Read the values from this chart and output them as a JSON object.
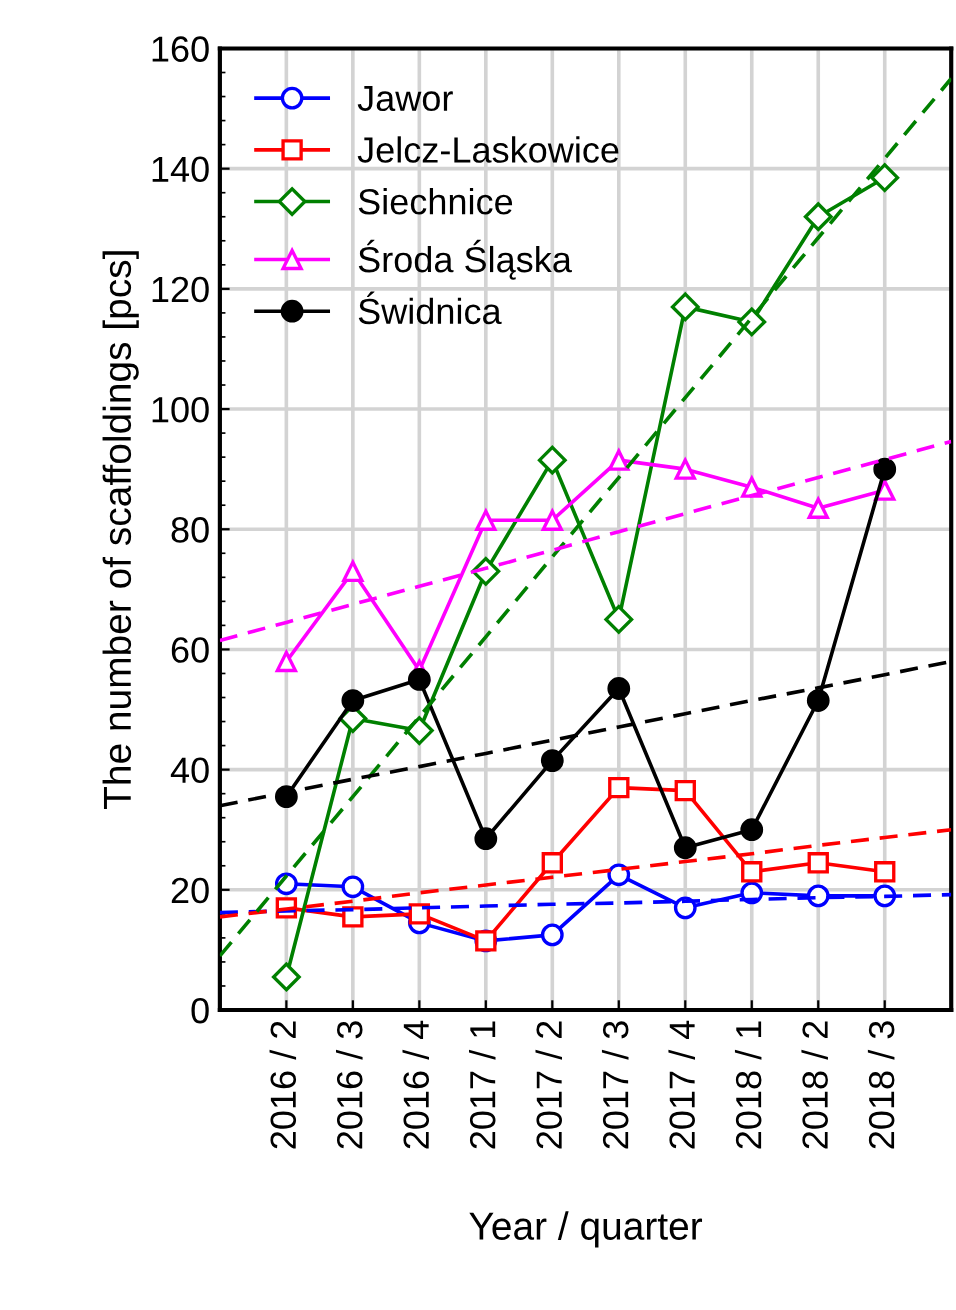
{
  "chart_data": {
    "type": "line",
    "xlabel": "Year / quarter",
    "ylabel": "The number of scaffoldings [pcs]",
    "categories": [
      null,
      "2016 / 2",
      "2016 / 3",
      "2016 / 4",
      "2017 / 1",
      "2017 / 2",
      "2017 / 3",
      "2017 / 4",
      "2018 / 1",
      "2018 / 2",
      "2018 / 3",
      null
    ],
    "ylim": [
      0,
      160
    ],
    "yticks": [
      0,
      20,
      40,
      60,
      80,
      100,
      120,
      140,
      160
    ],
    "grid": true,
    "legend": "top left",
    "line_style": "solid",
    "series": [
      {
        "name": "Jawor",
        "color": "#0000ff",
        "marker": "circle",
        "values": [
          null,
          21,
          20.5,
          14.5,
          11.5,
          12.5,
          22.5,
          17,
          19.5,
          19,
          19,
          null
        ]
      },
      {
        "name": "Jelcz-Laskowice",
        "color": "#ff0000",
        "marker": "square",
        "values": [
          null,
          17,
          15.5,
          16,
          11.5,
          24.5,
          37,
          36.5,
          23,
          24.5,
          23,
          null
        ]
      },
      {
        "name": "Siechnice",
        "color": "#008000",
        "marker": "diamond",
        "values": [
          null,
          5.5,
          48.5,
          46.5,
          73,
          91.5,
          65,
          117,
          114.5,
          132,
          138.5,
          null
        ]
      },
      {
        "name": "Środa Śląska",
        "color": "#ff00ff",
        "marker": "triangle",
        "values": [
          null,
          58,
          73,
          56.5,
          81.5,
          81.5,
          91.5,
          90,
          87,
          83.5,
          86.5,
          null
        ]
      },
      {
        "name": "Świdnica",
        "color": "#000000",
        "marker": "circle",
        "values": [
          null,
          35.5,
          51.5,
          55,
          28.5,
          41.5,
          53.5,
          27,
          30,
          51.5,
          90,
          null
        ]
      },
      {
        "color": "#0000ff",
        "line_style": "dashed",
        "marker": "none",
        "values": [
          16.2,
          16.5,
          16.7,
          17.0,
          17.3,
          17.6,
          17.8,
          18.1,
          18.4,
          18.7,
          18.9,
          19.2
        ]
      },
      {
        "color": "#ff0000",
        "line_style": "dashed",
        "marker": "none",
        "values": [
          15.5,
          16.8,
          18.1,
          19.5,
          20.8,
          22.1,
          23.4,
          24.7,
          26.0,
          27.4,
          28.7,
          30.0
        ]
      },
      {
        "color": "#008000",
        "line_style": "dashed",
        "marker": "none",
        "values": [
          9,
          22.3,
          35.5,
          48.8,
          62.1,
          75.4,
          88.6,
          101.9,
          115.2,
          128.5,
          141.7,
          155
        ]
      },
      {
        "color": "#ff00ff",
        "line_style": "dashed",
        "marker": "none",
        "values": [
          61.5,
          64.5,
          67.5,
          70.5,
          73.5,
          76.5,
          79.6,
          82.6,
          85.6,
          88.6,
          91.6,
          94.6
        ]
      },
      {
        "color": "#000000",
        "line_style": "dashed",
        "marker": "none",
        "values": [
          34,
          36.2,
          38.4,
          40.5,
          42.7,
          44.9,
          47.1,
          49.3,
          51.5,
          53.6,
          55.8,
          58
        ]
      }
    ]
  }
}
